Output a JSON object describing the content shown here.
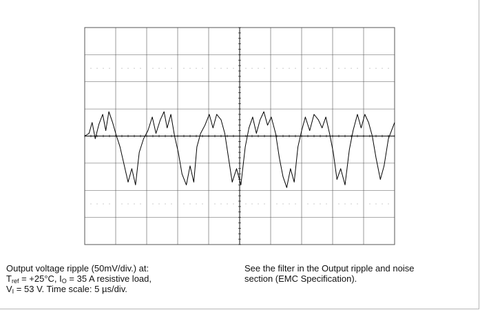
{
  "chart_data": {
    "type": "line",
    "title": "",
    "xlabel": "",
    "ylabel": "",
    "x_divisions": 10,
    "y_divisions": 8,
    "y_scale": "50mV/div.",
    "x_scale": "5 µs/div.",
    "xlim": [
      0,
      50
    ],
    "ylim": [
      -200,
      200
    ],
    "grid": true,
    "series": [
      {
        "x": [
          0,
          0.7,
          1.2,
          1.7,
          2.3,
          2.9,
          3.4,
          3.9,
          4.5,
          5.0,
          5.7,
          6.3,
          7.0,
          7.6,
          8.2,
          8.8,
          9.5,
          10.2,
          10.9,
          11.5,
          12.2,
          12.8,
          13.3,
          13.9,
          14.5,
          15.1,
          15.7,
          16.4,
          17.0,
          17.6,
          18.1,
          18.7,
          19.4,
          20.1,
          20.7,
          21.3,
          22.0,
          22.6,
          23.2,
          23.8,
          24.5,
          25.2,
          25.9,
          26.5,
          27.1,
          27.7,
          28.3,
          28.9,
          29.5,
          30.1,
          30.8,
          31.4,
          32.0,
          32.6,
          33.2,
          33.8,
          34.4,
          35.0,
          35.6,
          36.3,
          37.0,
          37.7,
          38.3,
          38.9,
          39.5,
          40.1,
          40.7,
          41.3,
          42.0,
          42.7,
          43.3,
          44.0,
          44.6,
          45.2,
          45.8,
          46.4,
          47.0,
          47.7,
          48.3,
          49.0,
          50.0
        ],
        "y": [
          0,
          5,
          25,
          -5,
          22,
          40,
          10,
          45,
          25,
          5,
          -20,
          -50,
          -85,
          -60,
          -90,
          -30,
          -5,
          10,
          35,
          5,
          30,
          45,
          15,
          40,
          0,
          -30,
          -70,
          -90,
          -55,
          -85,
          -20,
          5,
          20,
          40,
          15,
          40,
          30,
          5,
          -40,
          -85,
          -60,
          -90,
          -20,
          15,
          35,
          5,
          30,
          45,
          20,
          35,
          5,
          -40,
          -75,
          -95,
          -60,
          -85,
          -20,
          10,
          35,
          10,
          40,
          30,
          15,
          35,
          5,
          -30,
          -80,
          -60,
          -90,
          -25,
          10,
          40,
          15,
          40,
          25,
          0,
          -40,
          -80,
          -55,
          -5,
          25
        ]
      }
    ]
  },
  "caption": {
    "left": {
      "line1": "Output voltage ripple (50mV/div.) at:",
      "t": "T",
      "t_sub": "ref",
      "t_rest": " = +25°C, I",
      "i_sub": "O",
      "i_rest": " = 35 A resistive load,",
      "v": "V",
      "v_sub": "I",
      "v_rest": " = 53 V. Time scale: 5 µs/div."
    },
    "right": {
      "line1": "See the filter in the Output ripple and noise",
      "line2": "section (EMC Specification)."
    }
  },
  "colors": {
    "grid": "#555555",
    "dots": "#777777",
    "trace": "#000000",
    "axes": "#000000"
  }
}
